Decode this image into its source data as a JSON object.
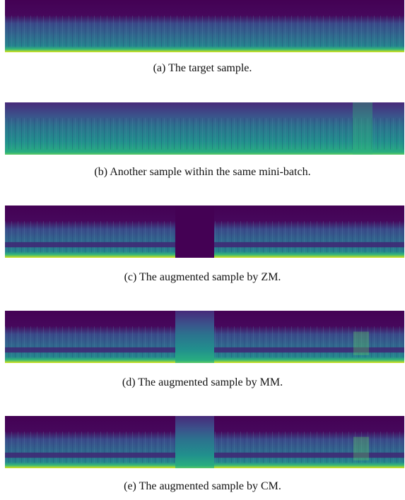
{
  "figure": {
    "panels": [
      {
        "caption": "(a)  The target sample."
      },
      {
        "caption": "(b)  Another sample within the same mini-batch."
      },
      {
        "caption": "(c)  The augmented sample by ZM."
      },
      {
        "caption": "(d)  The augmented sample by MM."
      },
      {
        "caption": "(e)  The augmented sample by CM."
      }
    ]
  }
}
